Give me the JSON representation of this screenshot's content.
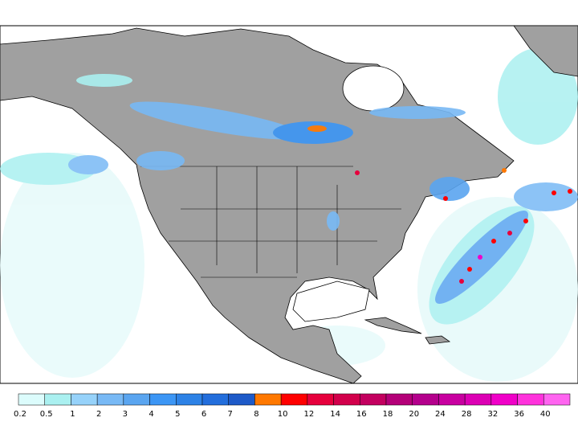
{
  "legend": {
    "labels": [
      0.2,
      0.5,
      1,
      2,
      3,
      4,
      5,
      6,
      7,
      8,
      10,
      12,
      14,
      16,
      18,
      20,
      24,
      28,
      32,
      36,
      40
    ],
    "colors": [
      "#dcfcfc",
      "#aaf0f0",
      "#96d2fa",
      "#78b9f5",
      "#5aa5f0",
      "#3c96f5",
      "#2d82e6",
      "#236edc",
      "#1e5ac8",
      "#ff7800",
      "#ff0000",
      "#e6003c",
      "#d2004b",
      "#c3005f",
      "#b40078",
      "#b4008c",
      "#c800a0",
      "#dc00b4",
      "#f000c8",
      "#ff32dc",
      "#ff64f0"
    ]
  }
}
